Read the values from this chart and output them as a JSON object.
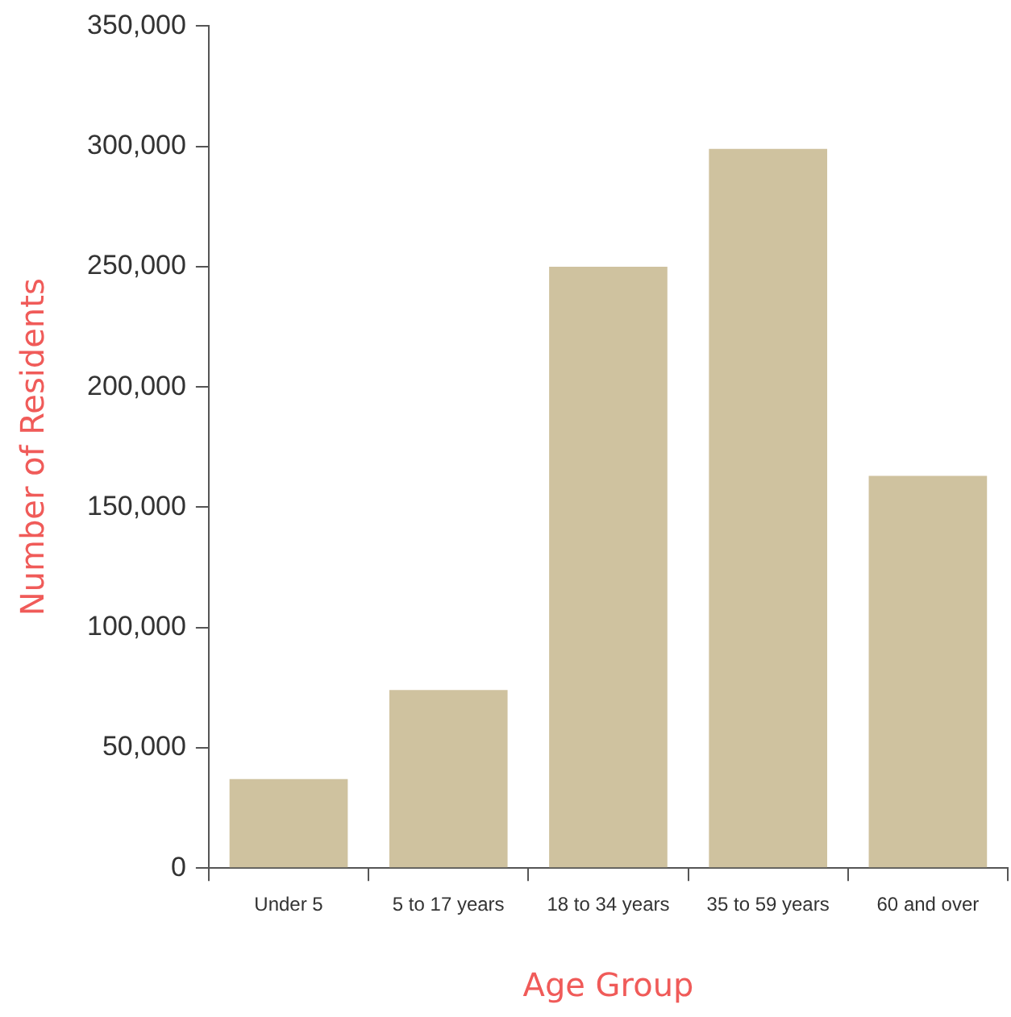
{
  "chart_data": {
    "type": "bar",
    "xlabel": "Age Group",
    "ylabel": "Number of Residents",
    "categories": [
      "Under 5",
      "5 to 17 years",
      "18 to 34 years",
      "35 to 59 years",
      "60 and over"
    ],
    "values": [
      37000,
      74000,
      250000,
      299000,
      163000
    ],
    "color": "#cfc29f",
    "ylim": [
      0,
      350000
    ],
    "yticks": [
      0,
      {
        "value": 50000,
        "label": "50,000"
      },
      {
        "value": 100000,
        "label": "100,000"
      },
      {
        "value": 150000,
        "label": "150,000"
      },
      {
        "value": 200000,
        "label": "200,000"
      },
      {
        "value": 250000,
        "label": "250,000"
      },
      {
        "value": 300000,
        "label": "300,000"
      },
      {
        "value": 350000,
        "label": "350,000"
      }
    ],
    "grid": false,
    "legend": false
  }
}
